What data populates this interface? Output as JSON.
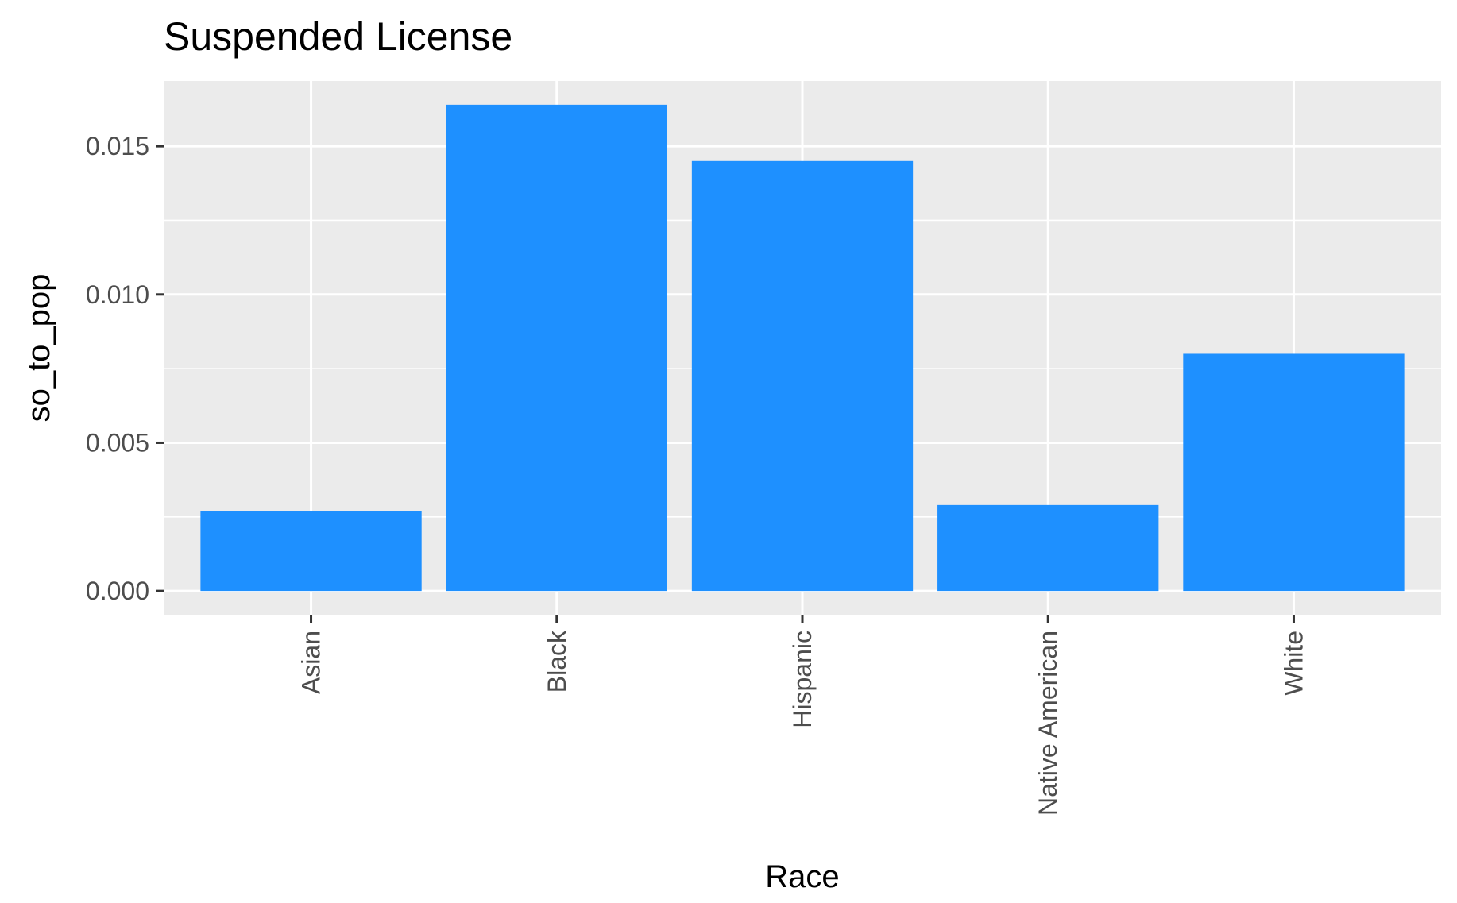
{
  "chart_data": {
    "type": "bar",
    "title": "Suspended License",
    "xlabel": "Race",
    "ylabel": "so_to_pop",
    "categories": [
      "Asian",
      "Black",
      "Hispanic",
      "Native American",
      "White"
    ],
    "values": [
      0.0027,
      0.0164,
      0.0145,
      0.0029,
      0.008
    ],
    "ylim": [
      -0.0008,
      0.0172
    ],
    "yticks": [
      "0.000",
      "0.005",
      "0.010",
      "0.015"
    ],
    "grid": true,
    "legend": "none",
    "x_tick_rotation": "vertical",
    "colors": {
      "bar": "#1E90FF",
      "panel": "#EBEBEB",
      "grid": "#FFFFFF",
      "tick_mark": "#333333",
      "tick_label": "#4D4D4D"
    }
  }
}
